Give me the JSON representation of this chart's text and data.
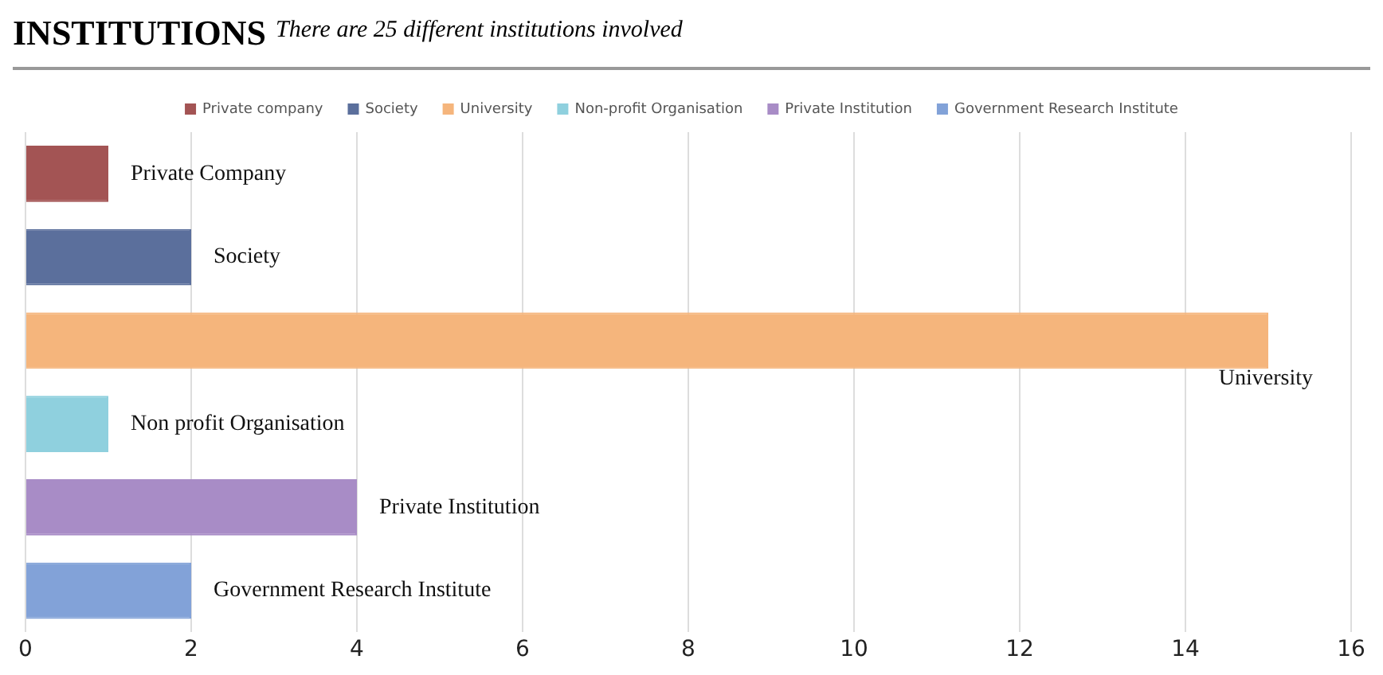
{
  "chart_data": {
    "type": "bar",
    "orientation": "horizontal",
    "title": "INSTITUTIONS",
    "subtitle": "There are 25 different institutions involved",
    "categories": [
      "Private Company",
      "Society",
      "University",
      "Non profit Organisation",
      "Private Institution",
      "Government Research Institute"
    ],
    "series": [
      {
        "name": "Private company",
        "color": "#a35454",
        "values": [
          1,
          null,
          null,
          null,
          null,
          null
        ]
      },
      {
        "name": "Society",
        "color": "#5b6f9c",
        "values": [
          null,
          2,
          null,
          null,
          null,
          null
        ]
      },
      {
        "name": "University",
        "color": "#f5b57c",
        "values": [
          null,
          null,
          15,
          null,
          null,
          null
        ]
      },
      {
        "name": "Non-profit Organisation",
        "color": "#8fd0de",
        "values": [
          null,
          null,
          null,
          1,
          null,
          null
        ]
      },
      {
        "name": "Private Institution",
        "color": "#a88cc6",
        "values": [
          null,
          null,
          null,
          null,
          4,
          null
        ]
      },
      {
        "name": "Government Research Institute",
        "color": "#82a2d8",
        "values": [
          null,
          null,
          null,
          null,
          null,
          2
        ]
      }
    ],
    "xlim": [
      0,
      16
    ],
    "xticks": [
      0,
      2,
      4,
      6,
      8,
      10,
      12,
      14,
      16
    ],
    "grid": "x",
    "legend": "top",
    "tick_labels": "x"
  }
}
